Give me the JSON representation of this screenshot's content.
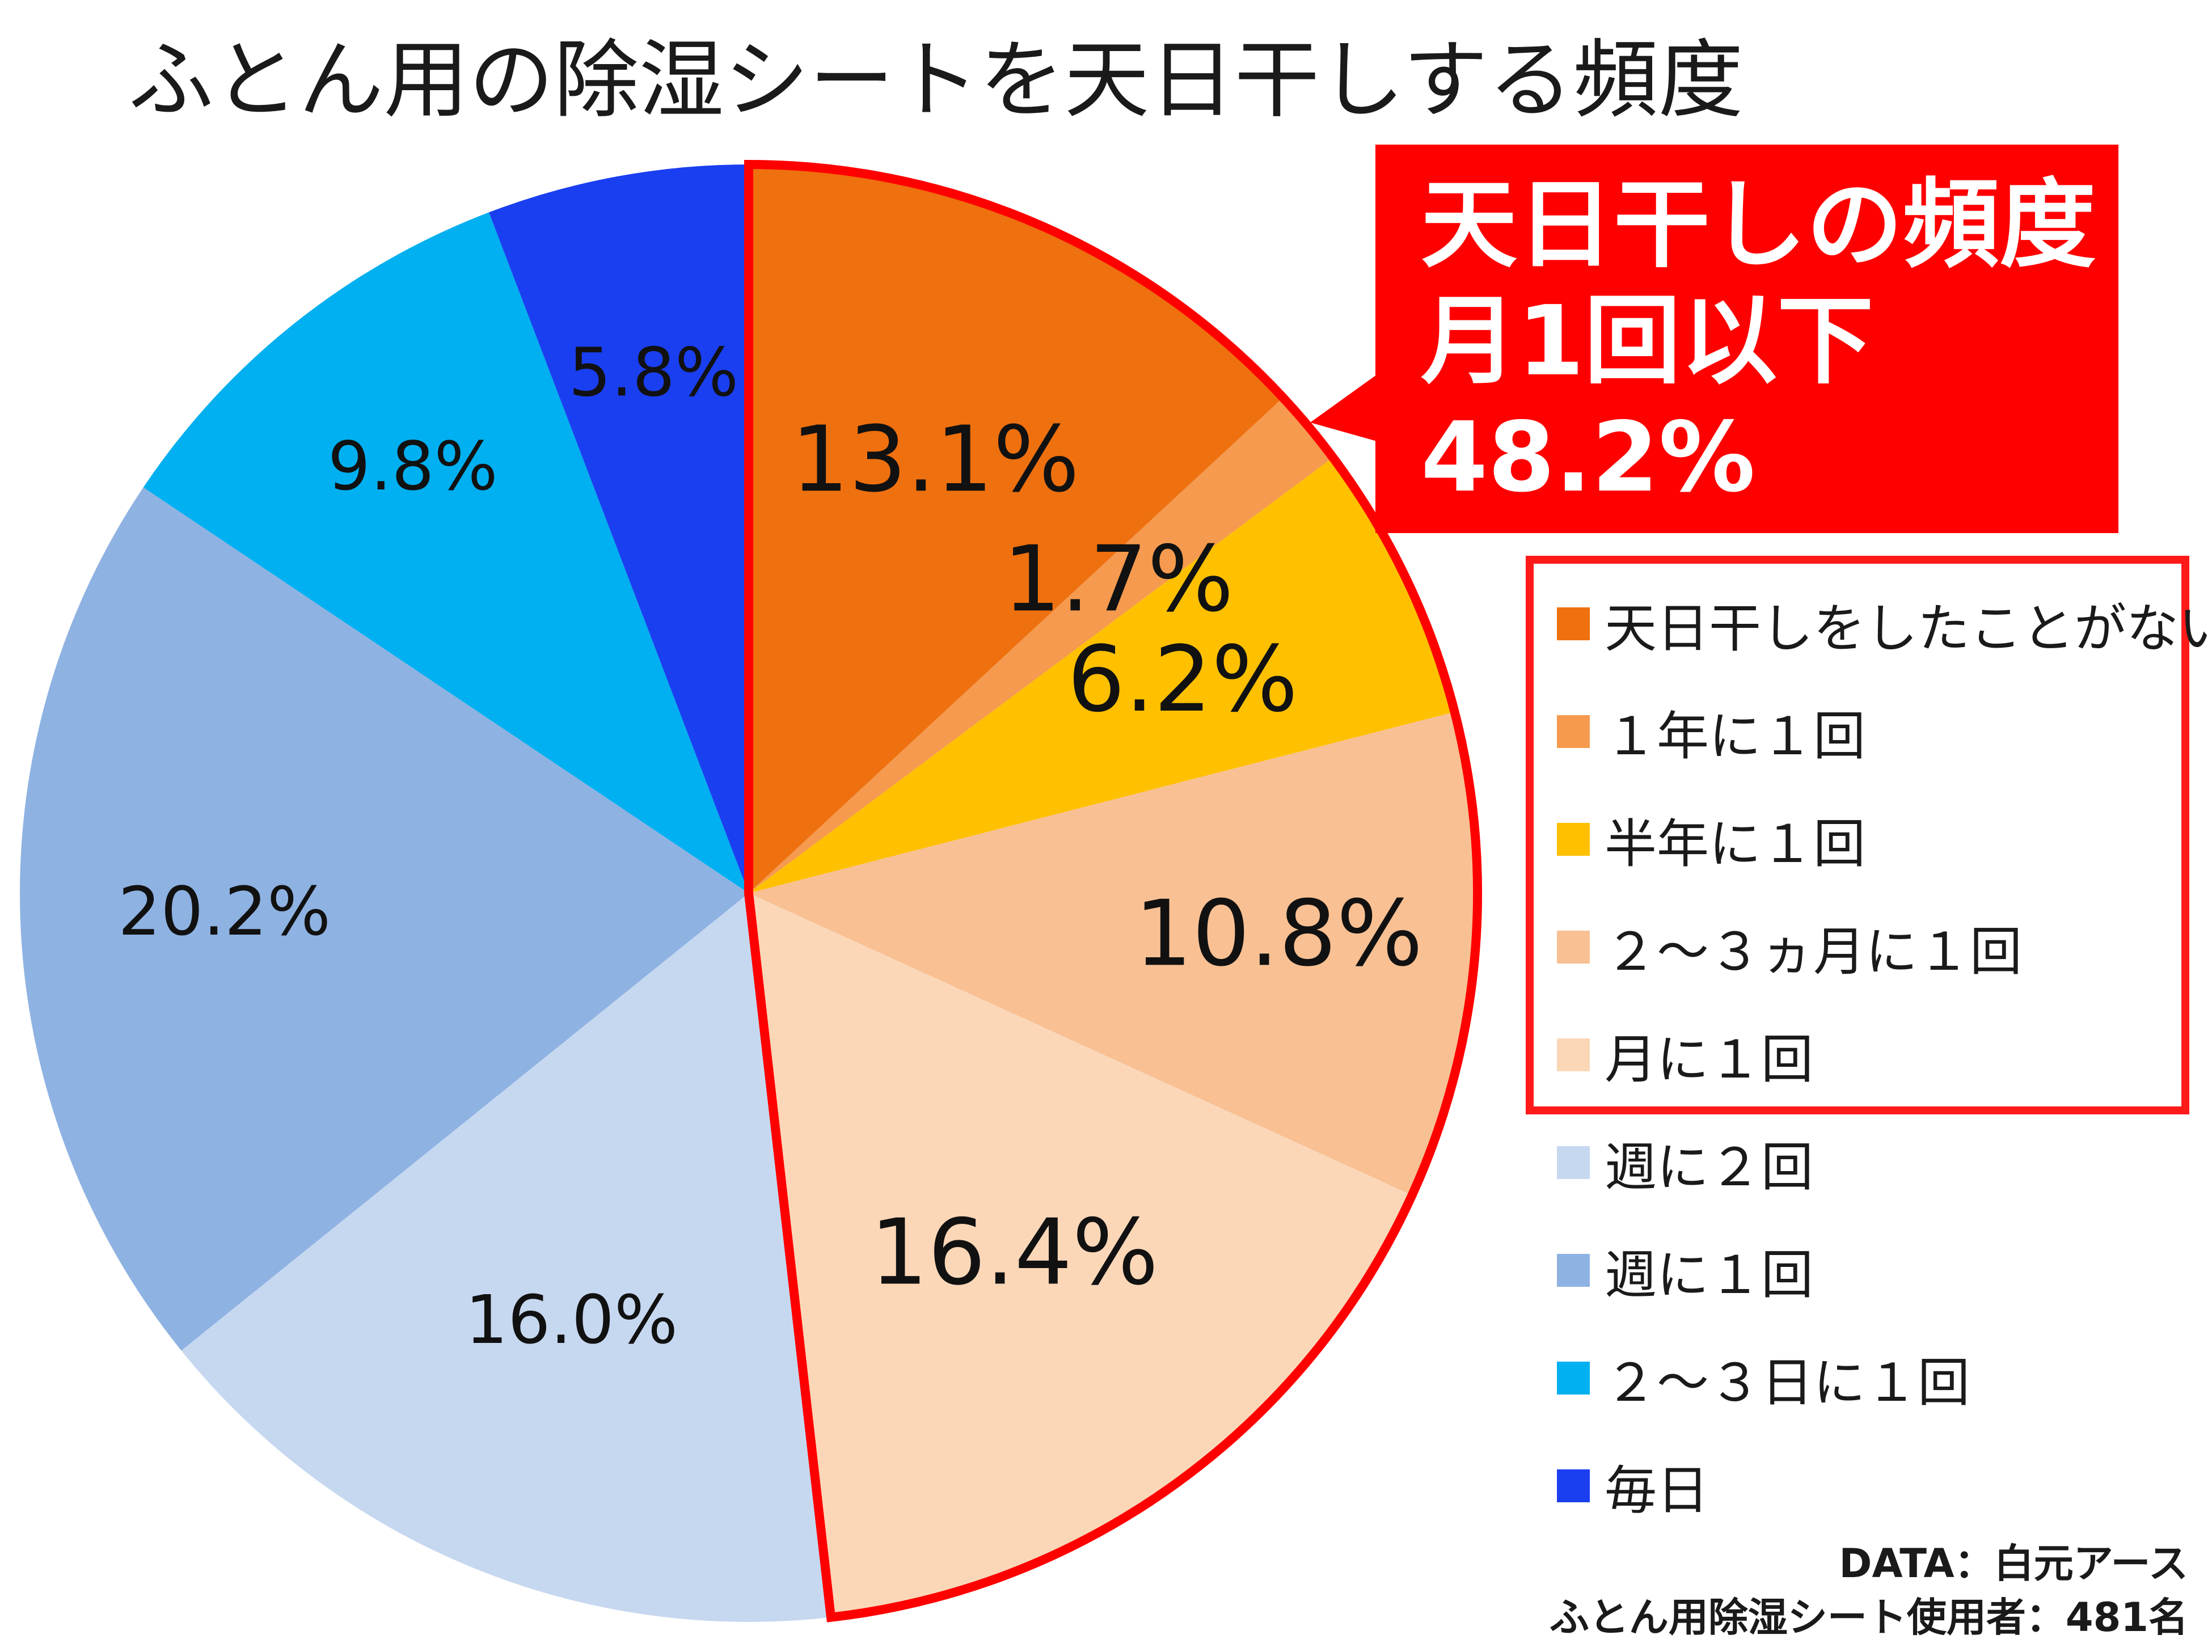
{
  "chart_data": {
    "type": "pie",
    "title": "ふとん用の除湿シートを天日干しする頻度",
    "slices": [
      {
        "label": "天日干しをしたことがない",
        "value": 13.1,
        "value_label": "13.1%",
        "color": "#ee700f"
      },
      {
        "label": "１年に１回",
        "value": 1.7,
        "value_label": "1.7%",
        "color": "#f59a4e"
      },
      {
        "label": "半年に１回",
        "value": 6.2,
        "value_label": "6.2%",
        "color": "#ffc000"
      },
      {
        "label": "２～３ヵ月に１回",
        "value": 10.8,
        "value_label": "10.8%",
        "color": "#f8c093"
      },
      {
        "label": "月に１回",
        "value": 16.4,
        "value_label": "16.4%",
        "color": "#fbd7b8"
      },
      {
        "label": "週に２回",
        "value": 16.0,
        "value_label": "16.0%",
        "color": "#c6d8f0"
      },
      {
        "label": "週に１回",
        "value": 20.2,
        "value_label": "20.2%",
        "color": "#8eb2e2"
      },
      {
        "label": "２～３日に１回",
        "value": 9.8,
        "value_label": "9.8%",
        "color": "#00b0f0"
      },
      {
        "label": "毎日",
        "value": 5.8,
        "value_label": "5.8%",
        "color": "#1a3ff0"
      }
    ],
    "legend_position": "right",
    "highlight": {
      "lines": [
        "天日干しの頻度",
        "月1回以下",
        "48.2%"
      ],
      "color": "#ff0000",
      "slice_count": 5
    }
  },
  "source": {
    "line1": "DATA：白元アース",
    "line2": "ふとん用除湿シート使用者：481名"
  }
}
